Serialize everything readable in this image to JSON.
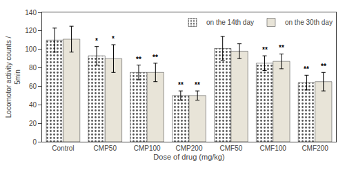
{
  "chart_data": {
    "type": "bar",
    "categories": [
      "Control",
      "CMP50",
      "CMP100",
      "CMP200",
      "CMF50",
      "CMF100",
      "CMF200"
    ],
    "series": [
      {
        "name": "on the 14th day",
        "color": "#c8c8c8",
        "values": [
          110,
          93,
          75,
          50,
          101,
          85,
          64
        ],
        "errors": [
          13,
          10,
          8,
          5,
          13,
          8,
          8
        ],
        "annotations": [
          null,
          "*",
          "**",
          "**",
          null,
          "**",
          "**"
        ]
      },
      {
        "name": "on the 30th day",
        "color": "#e8e4d8",
        "values": [
          111,
          90,
          75,
          50,
          98,
          87,
          65
        ],
        "errors": [
          14,
          15,
          10,
          5,
          8,
          8,
          10
        ],
        "annotations": [
          null,
          "*",
          "**",
          "**",
          null,
          "**",
          "**"
        ]
      }
    ],
    "xlabel": "Dose of drug (mg/kg)",
    "ylabel": "Locomotor activity counts /\n5min",
    "ylim": [
      0,
      140
    ],
    "yticks": [
      0,
      20,
      40,
      60,
      80,
      100,
      120,
      140
    ],
    "grid": false,
    "legend": "upper right"
  }
}
